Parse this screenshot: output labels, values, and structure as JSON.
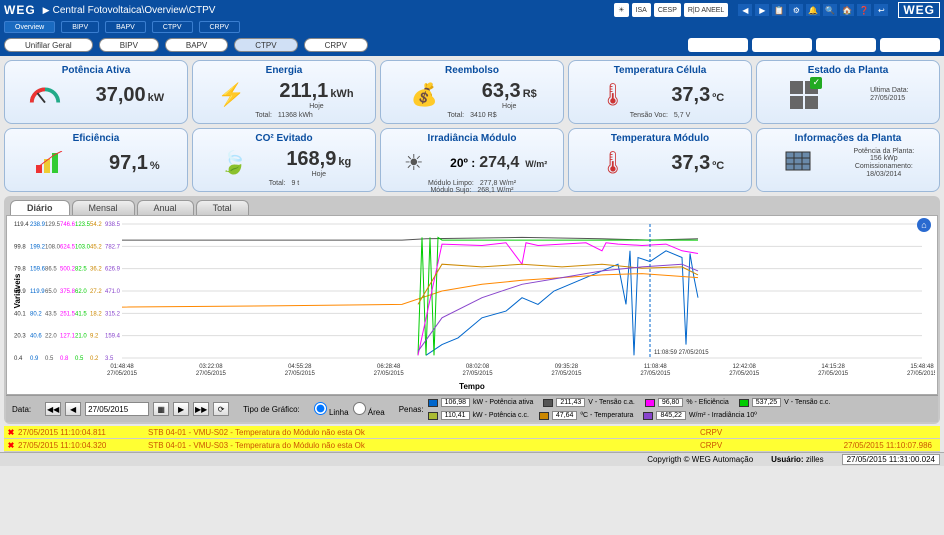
{
  "breadcrumb": {
    "root": "Central Fotovoltaica",
    "l1": "Overview",
    "l2": "CTPV"
  },
  "brand": "WEG",
  "top_logos": [
    "☀",
    "ISA",
    "CESP",
    "R|D ANEEL"
  ],
  "top_icons": [
    "◀",
    "▶",
    "📋",
    "⚙",
    "🔔",
    "🔍",
    "🏠",
    "❓",
    "↩"
  ],
  "subtabs_top": [
    "Overview",
    "BIPV",
    "BAPV",
    "CTPV",
    "CRPV"
  ],
  "tabs": [
    "Unifilar Geral",
    "BIPV",
    "BAPV",
    "CTPV",
    "CRPV"
  ],
  "tab_active": "CTPV",
  "kpi": {
    "potencia": {
      "title": "Potência Ativa",
      "val": "37,00",
      "unit": "kW"
    },
    "energia": {
      "title": "Energia",
      "val": "211,1",
      "unit": "kWh",
      "sub_l": "Hoje",
      "sub_b": "Total:",
      "sub_bv": "11368 kWh"
    },
    "reembolso": {
      "title": "Reembolso",
      "val": "63,3",
      "unit": "R$",
      "sub_l": "Hoje",
      "sub_b": "Total:",
      "sub_bv": "3410 R$"
    },
    "temp_cel": {
      "title": "Temperatura Célula",
      "val": "37,3",
      "unit": "ºC",
      "sub_b": "Tensão Voc:",
      "sub_bv": "5,7 V"
    },
    "estado": {
      "title": "Estado da Planta",
      "sub_t": "Ultima Data:",
      "sub_tv": "27/05/2015"
    },
    "eficiencia": {
      "title": "Eficiência",
      "val": "97,1",
      "unit": "%"
    },
    "co2": {
      "title": "CO² Evitado",
      "val": "168,9",
      "unit": "kg",
      "sub_l": "Hoje",
      "sub_b": "Total:",
      "sub_bv": "9 t"
    },
    "irrad": {
      "title": "Irradiância Módulo",
      "ang": "20º :",
      "val": "274,4",
      "unit": "W/m²",
      "s1l": "Módulo Limpo:",
      "s1v": "277,8 W/m²",
      "s2l": "Módulo Sujo:",
      "s2v": "268,1 W/m²"
    },
    "temp_mod": {
      "title": "Temperatura Módulo",
      "val": "37,3",
      "unit": "ºC"
    },
    "info": {
      "title": "Informações da Planta",
      "s1l": "Potência da Planta:",
      "s1v": "156 kWp",
      "s2l": "Comissionamento:",
      "s2v": "18/03/2014"
    }
  },
  "chart": {
    "tabs": [
      "Diário",
      "Mensal",
      "Anual",
      "Total"
    ],
    "tab_active": "Diário",
    "y_label": "Variáveis",
    "x_label": "Tempo",
    "y_ticks_left": [
      "119.4",
      "99.8",
      "79.8",
      "59.9",
      "40.1",
      "20.3",
      "0.4"
    ],
    "y_ticks_groups": [
      [
        "238.9",
        "129.5",
        "746.6",
        "123.5",
        "54.2",
        "938.5"
      ],
      [
        "199.2",
        "108.0",
        "624.5",
        "103.0",
        "45.2",
        "782.7"
      ],
      [
        "159.6",
        "86.5",
        "500.2",
        "82.5",
        "36.2",
        "626.9"
      ],
      [
        "119.9",
        "65.0",
        "375.8",
        "62.0",
        "27.2",
        "471.0"
      ],
      [
        "80.2",
        "43.5",
        "251.5",
        "41.5",
        "18.2",
        "315.2"
      ],
      [
        "40.6",
        "22.0",
        "127.1",
        "21.0",
        "9.2",
        "159.4"
      ],
      [
        "0.9",
        "0.5",
        "0.8",
        "0.5",
        "0.2",
        "3.5"
      ]
    ],
    "y_colors": [
      "#0066cc",
      "#555555",
      "#ff00ff",
      "#00cc00",
      "#cc8800",
      "#8844cc"
    ],
    "x_ticks": [
      "01:48:48",
      "03:22:08",
      "04:55:28",
      "06:28:48",
      "08:02:08",
      "09:35:28",
      "11:08:48",
      "12:42:08",
      "14:15:28",
      "15:48:48"
    ],
    "x_date": "27/05/2015",
    "marker_label": "11:08:59 27/05/2015",
    "series": {
      "potencia_ativa": {
        "color": "#0066cc",
        "points": [
          [
            0.38,
            0.98
          ],
          [
            0.4,
            0.9
          ],
          [
            0.42,
            0.85
          ],
          [
            0.45,
            0.7
          ],
          [
            0.48,
            0.65
          ],
          [
            0.5,
            0.55
          ],
          [
            0.52,
            0.6
          ],
          [
            0.54,
            0.5
          ],
          [
            0.56,
            0.45
          ],
          [
            0.58,
            0.4
          ],
          [
            0.6,
            0.35
          ],
          [
            0.62,
            0.3
          ],
          [
            0.63,
            0.6
          ],
          [
            0.635,
            0.2
          ],
          [
            0.64,
            0.98
          ],
          [
            0.645,
            0.25
          ],
          [
            0.66,
            0.28
          ],
          [
            0.68,
            0.2
          ],
          [
            0.7,
            0.25
          ],
          [
            0.705,
            0.9
          ],
          [
            0.71,
            0.22
          ],
          [
            0.715,
            0.4
          ],
          [
            0.72,
            0.55
          ]
        ]
      },
      "tensao_ca": {
        "color": "#555555",
        "points": [
          [
            0.0,
            0.12
          ],
          [
            0.35,
            0.12
          ],
          [
            0.38,
            0.11
          ],
          [
            0.5,
            0.1
          ],
          [
            0.6,
            0.11
          ],
          [
            0.66,
            0.12
          ],
          [
            0.72,
            0.11
          ]
        ]
      },
      "eficiencia": {
        "color": "#ff8800",
        "points": [
          [
            0.0,
            0.62
          ],
          [
            0.2,
            0.61
          ],
          [
            0.35,
            0.6
          ],
          [
            0.4,
            0.5
          ],
          [
            0.45,
            0.45
          ],
          [
            0.5,
            0.42
          ],
          [
            0.55,
            0.4
          ],
          [
            0.6,
            0.38
          ],
          [
            0.65,
            0.37
          ],
          [
            0.72,
            0.4
          ]
        ]
      },
      "tensao_cc": {
        "color": "#00cc00",
        "points": [
          [
            0.37,
            0.98
          ],
          [
            0.375,
            0.1
          ],
          [
            0.38,
            0.98
          ],
          [
            0.385,
            0.1
          ],
          [
            0.39,
            0.98
          ],
          [
            0.395,
            0.1
          ],
          [
            0.4,
            0.12
          ],
          [
            0.72,
            0.12
          ]
        ]
      },
      "potencia_cc": {
        "color": "#ff00ff",
        "points": [
          [
            0.37,
            0.98
          ],
          [
            0.4,
            0.15
          ],
          [
            0.45,
            0.16
          ],
          [
            0.48,
            0.14
          ],
          [
            0.5,
            0.3
          ],
          [
            0.505,
            0.14
          ],
          [
            0.52,
            0.16
          ],
          [
            0.55,
            0.15
          ],
          [
            0.58,
            0.14
          ],
          [
            0.6,
            0.2
          ],
          [
            0.605,
            0.14
          ],
          [
            0.62,
            0.15
          ],
          [
            0.65,
            0.16
          ],
          [
            0.68,
            0.15
          ],
          [
            0.7,
            0.2
          ],
          [
            0.72,
            0.22
          ]
        ]
      },
      "temperatura": {
        "color": "#cc8800",
        "points": [
          [
            0.37,
            0.6
          ],
          [
            0.4,
            0.3
          ],
          [
            0.45,
            0.32
          ],
          [
            0.5,
            0.3
          ],
          [
            0.55,
            0.32
          ],
          [
            0.6,
            0.3
          ],
          [
            0.65,
            0.33
          ],
          [
            0.7,
            0.32
          ],
          [
            0.72,
            0.38
          ]
        ]
      },
      "irradiancia": {
        "color": "#8844cc",
        "points": [
          [
            0.37,
            0.95
          ],
          [
            0.4,
            0.7
          ],
          [
            0.45,
            0.55
          ],
          [
            0.5,
            0.45
          ],
          [
            0.55,
            0.4
          ],
          [
            0.6,
            0.35
          ],
          [
            0.65,
            0.32
          ],
          [
            0.7,
            0.3
          ],
          [
            0.72,
            0.35
          ]
        ]
      }
    },
    "controls": {
      "data_label": "Data:",
      "date_value": "27/05/2015",
      "tipo_label": "Tipo de Gráfico:",
      "radio1": "Linha",
      "radio2": "Área",
      "penas_label": "Penas:"
    },
    "legend": [
      {
        "val": "106,98",
        "unit": "kW - Potência ativa",
        "color": "#0066cc"
      },
      {
        "val": "211,43",
        "unit": "V - Tensão c.a.",
        "color": "#555555"
      },
      {
        "val": "96,80",
        "unit": "% - Eficiência",
        "color": "#ff00ff"
      },
      {
        "val": "537,25",
        "unit": "V - Tensão c.c.",
        "color": "#00cc00"
      },
      {
        "val": "110,41",
        "unit": "kW - Potência c.c.",
        "color": "#aabb33"
      },
      {
        "val": "47,64",
        "unit": "ºC - Temperatura",
        "color": "#cc8800"
      },
      {
        "val": "845,22",
        "unit": "W/m² - Irradiância 10º",
        "color": "#8844cc"
      }
    ]
  },
  "alarms": [
    {
      "ts": "27/05/2015 11:10:04.811",
      "msg": "STB 04-01 - VMU-S02 - Temperatura do Módulo não esta Ok",
      "tag": "CRPV",
      "ts2": ""
    },
    {
      "ts": "27/05/2015 11:10:04.320",
      "msg": "STB 04-01 - VMU-S03 - Temperatura do Módulo não esta Ok",
      "tag": "CRPV",
      "ts2": "27/05/2015 11:10:07.986"
    }
  ],
  "footer": {
    "copyright": "Copyrigth © WEG Automação",
    "user_label": "Usuário:",
    "user": "zilles",
    "clock": "27/05/2015 11:31:00.024"
  }
}
